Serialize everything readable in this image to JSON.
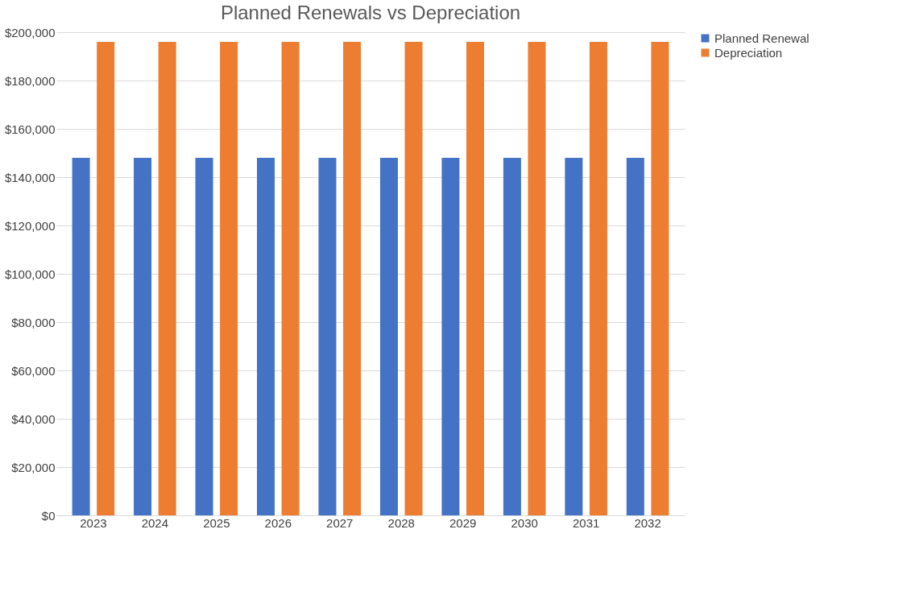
{
  "chart_data": {
    "type": "bar",
    "title": "Planned Renewals vs Depreciation",
    "categories": [
      "2023",
      "2024",
      "2025",
      "2026",
      "2027",
      "2028",
      "2029",
      "2030",
      "2031",
      "2032"
    ],
    "series": [
      {
        "name": "Planned Renewal",
        "color": "#4472c4",
        "values": [
          148000,
          148000,
          148000,
          148000,
          148000,
          148000,
          148000,
          148000,
          148000,
          148000
        ]
      },
      {
        "name": "Depreciation",
        "color": "#ed7d31",
        "values": [
          196000,
          196000,
          196000,
          196000,
          196000,
          196000,
          196000,
          196000,
          196000,
          196000
        ]
      }
    ],
    "ylim": [
      0,
      200000
    ],
    "yticks": [
      {
        "value": 0,
        "label": "$0"
      },
      {
        "value": 20000,
        "label": "$20,000"
      },
      {
        "value": 40000,
        "label": "$40,000"
      },
      {
        "value": 60000,
        "label": "$60,000"
      },
      {
        "value": 80000,
        "label": "$80,000"
      },
      {
        "value": 100000,
        "label": "$100,000"
      },
      {
        "value": 120000,
        "label": "$120,000"
      },
      {
        "value": 140000,
        "label": "$140,000"
      },
      {
        "value": 160000,
        "label": "$160,000"
      },
      {
        "value": 180000,
        "label": "$180,000"
      },
      {
        "value": 200000,
        "label": "$200,000"
      }
    ],
    "grid": "y",
    "legend": "right"
  }
}
